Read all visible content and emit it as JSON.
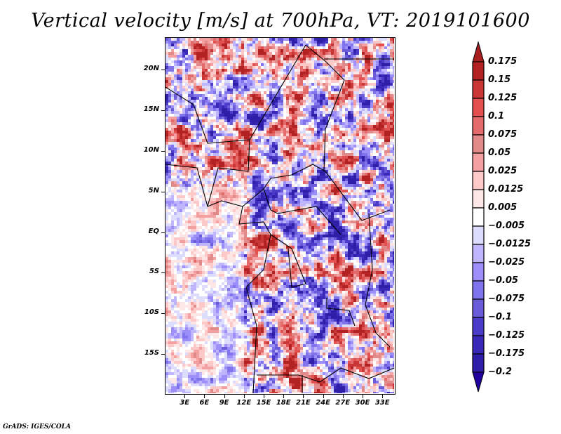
{
  "title": "Vertical velocity [m/s] at 700hPa, VT: 2019101600",
  "credit": "GrADS: IGES/COLA",
  "map": {
    "variable": "Vertical velocity",
    "units": "m/s",
    "level": "700hPa",
    "valid_time": "2019101600",
    "lon_range": [
      0,
      35
    ],
    "lat_range": [
      -20,
      24
    ],
    "y_ticks": [
      {
        "label": "20N",
        "lat": 20
      },
      {
        "label": "15N",
        "lat": 15
      },
      {
        "label": "10N",
        "lat": 10
      },
      {
        "label": "5N",
        "lat": 5
      },
      {
        "label": "EQ",
        "lat": 0
      },
      {
        "label": "5S",
        "lat": -5
      },
      {
        "label": "10S",
        "lat": -10
      },
      {
        "label": "15S",
        "lat": -15
      }
    ],
    "x_ticks": [
      {
        "label": "3E",
        "lon": 3
      },
      {
        "label": "6E",
        "lon": 6
      },
      {
        "label": "9E",
        "lon": 9
      },
      {
        "label": "12E",
        "lon": 12
      },
      {
        "label": "15E",
        "lon": 15
      },
      {
        "label": "18E",
        "lon": 18
      },
      {
        "label": "21E",
        "lon": 21
      },
      {
        "label": "24E",
        "lon": 24
      },
      {
        "label": "27E",
        "lon": 27
      },
      {
        "label": "30E",
        "lon": 30
      },
      {
        "label": "33E",
        "lon": 33
      }
    ]
  },
  "colorbar": {
    "labels": [
      "0.175",
      "0.15",
      "0.125",
      "0.1",
      "0.075",
      "0.05",
      "0.025",
      "0.0125",
      "0.005",
      "-0.005",
      "-0.0125",
      "-0.025",
      "-0.05",
      "-0.075",
      "-0.1",
      "-0.125",
      "-0.175",
      "-0.2"
    ],
    "top_arrow_color": "#a81e1e",
    "bottom_arrow_color": "#2200a0",
    "bins": [
      "#b22222",
      "#c83636",
      "#e35050",
      "#e36b6b",
      "#e28a8a",
      "#f5a0a0",
      "#fcc8c8",
      "#fde6e6",
      "#ffffff",
      "#dcdcfc",
      "#bfb5fc",
      "#9d8ffa",
      "#8074ec",
      "#6a5cd8",
      "#4a3cc8",
      "#3a28b8",
      "#2e1ea8"
    ]
  }
}
